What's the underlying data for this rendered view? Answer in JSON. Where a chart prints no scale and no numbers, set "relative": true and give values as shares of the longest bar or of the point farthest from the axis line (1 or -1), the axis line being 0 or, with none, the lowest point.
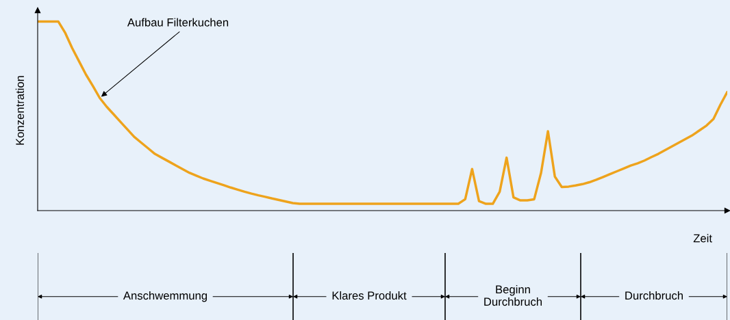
{
  "chart_data": {
    "type": "line",
    "relative": true,
    "xlabel": "Zeit",
    "ylabel": "Konzentration",
    "categories": [
      null,
      null,
      null,
      null,
      null,
      null,
      null,
      null,
      null,
      null,
      null,
      null,
      null,
      null,
      null,
      null,
      null,
      null,
      null,
      null,
      null,
      null,
      null,
      null,
      null,
      null,
      null,
      null,
      null,
      null,
      null,
      null,
      null,
      null,
      null,
      null,
      null,
      null,
      null,
      null,
      null,
      null,
      null,
      null,
      null,
      null,
      null,
      null,
      null,
      null,
      null,
      null,
      null,
      null,
      null,
      null,
      null,
      null,
      null,
      null,
      null,
      null,
      null,
      null,
      null,
      null,
      null,
      null,
      null,
      null,
      null,
      null,
      null,
      null,
      null,
      null,
      null,
      null,
      null,
      null,
      null,
      null,
      null,
      null,
      null,
      null,
      null,
      null,
      null,
      null,
      null,
      null,
      null,
      null,
      null,
      null,
      null,
      null,
      null,
      null,
      null
    ],
    "series": [
      {
        "color": "#eea31c",
        "values": [
          1.0,
          1.0,
          1.0,
          1.0,
          0.94,
          0.86,
          0.79,
          0.72,
          0.66,
          0.596,
          0.55,
          0.51,
          0.47,
          0.43,
          0.39,
          0.36,
          0.33,
          0.3,
          0.28,
          0.26,
          0.24,
          0.22,
          0.2,
          0.185,
          0.17,
          0.158,
          0.146,
          0.134,
          0.122,
          0.111,
          0.1,
          0.09,
          0.081,
          0.073,
          0.064,
          0.056,
          0.048,
          0.04,
          0.036,
          0.036,
          0.036,
          0.036,
          0.036,
          0.036,
          0.036,
          0.036,
          0.036,
          0.036,
          0.036,
          0.036,
          0.036,
          0.036,
          0.036,
          0.036,
          0.036,
          0.036,
          0.036,
          0.036,
          0.036,
          0.036,
          0.036,
          0.036,
          0.06,
          0.22,
          0.05,
          0.036,
          0.036,
          0.1,
          0.28,
          0.07,
          0.054,
          0.054,
          0.06,
          0.2,
          0.42,
          0.18,
          0.125,
          0.127,
          0.133,
          0.14,
          0.15,
          0.163,
          0.178,
          0.193,
          0.208,
          0.223,
          0.238,
          0.25,
          0.265,
          0.283,
          0.3,
          0.32,
          0.34,
          0.36,
          0.38,
          0.4,
          0.425,
          0.45,
          0.485,
          0.56,
          0.627
        ]
      }
    ],
    "annotations": [
      "Aufbau Filterkuchen",
      "Anschwemmung",
      "Klares Produkt",
      "Beginn\nDurchbruch",
      "Durchbruch"
    ]
  }
}
